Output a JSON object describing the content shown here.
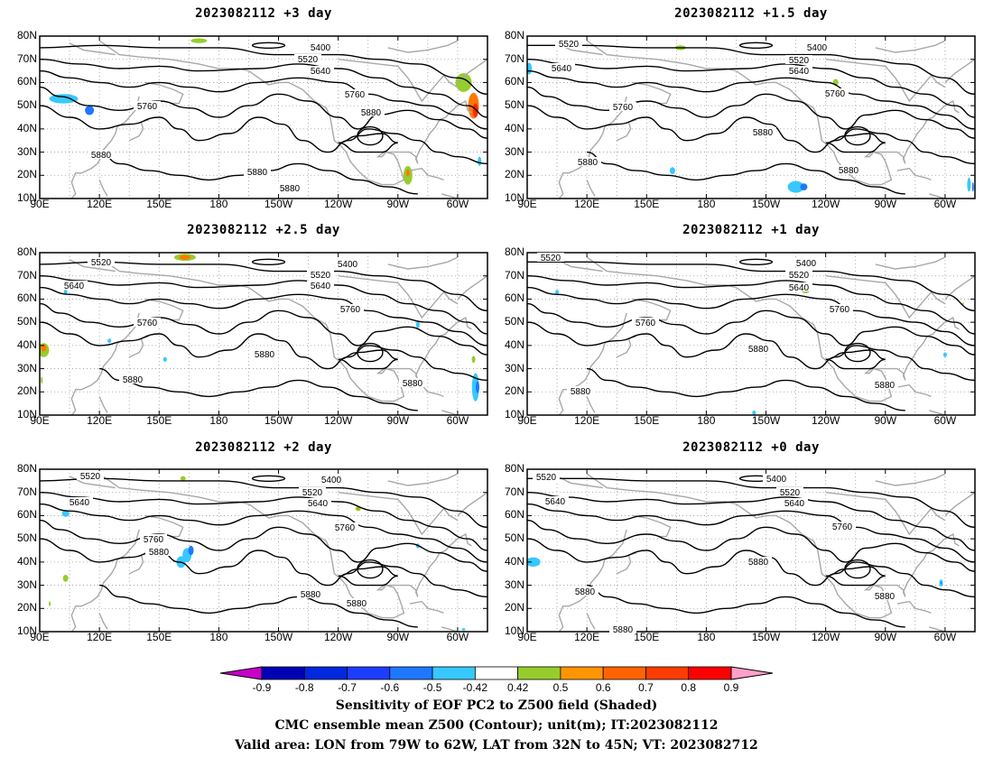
{
  "panels": [
    {
      "title": "2023082112 +3 day",
      "labels": {
        "5400": [
          [
            355,
            52
          ]
        ],
        "5520": [
          [
            341,
            65
          ]
        ],
        "5640": [
          [
            355,
            78
          ]
        ],
        "5760": [
          [
            163,
            117
          ],
          [
            393,
            104
          ]
        ],
        "5880": [
          [
            112,
            171
          ],
          [
            285,
            190
          ],
          [
            321,
            208
          ],
          [
            411,
            124
          ]
        ]
      },
      "patches": [
        {
          "lon": 102,
          "lat": 53,
          "rx": 16,
          "ry": 4,
          "color": "#37c8ff"
        },
        {
          "lon": 115,
          "lat": 48,
          "rx": 5,
          "ry": 4,
          "color": "#1e78ff"
        },
        {
          "lon": 147,
          "lat": 50,
          "rx": 5,
          "ry": 4,
          "color": "#96cd2d"
        },
        {
          "lon": 170,
          "lat": 78,
          "rx": 9,
          "ry": 2,
          "color": "#96cd2d"
        },
        {
          "lon": -85,
          "lat": 20,
          "rx": 5,
          "ry": 8,
          "color": "#96cd2d"
        },
        {
          "lon": -85,
          "lat": 21,
          "rx": 2,
          "ry": 3,
          "color": "#ff7800"
        },
        {
          "lon": -57,
          "lat": 60,
          "rx": 9,
          "ry": 8,
          "color": "#96cd2d"
        },
        {
          "lon": -52,
          "lat": 50,
          "rx": 6,
          "ry": 11,
          "color": "#ff7800"
        },
        {
          "lon": -51,
          "lat": 48,
          "rx": 3,
          "ry": 6,
          "color": "#ff2800"
        },
        {
          "lon": -49,
          "lat": 26,
          "rx": 2,
          "ry": 4,
          "color": "#37c8ff"
        },
        {
          "lon": 118,
          "lat": 28,
          "rx": 3,
          "ry": 2,
          "color": "#37c8ff"
        }
      ]
    },
    {
      "title": "2023082112 +1.5 day",
      "labels": {
        "5400": [
          [
            905,
            52
          ]
        ],
        "5520": [
          [
            630,
            48
          ],
          [
            885,
            66
          ]
        ],
        "5640": [
          [
            622,
            75
          ],
          [
            885,
            78
          ]
        ],
        "5760": [
          [
            690,
            118
          ],
          [
            925,
            103
          ]
        ],
        "5880": [
          [
            651,
            179
          ],
          [
            845,
            146
          ],
          [
            940,
            188
          ]
        ]
      },
      "patches": [
        {
          "lon": 91,
          "lat": 66,
          "rx": 3,
          "ry": 5,
          "color": "#37c8ff"
        },
        {
          "lon": 167,
          "lat": 75,
          "rx": 6,
          "ry": 2,
          "color": "#96cd2d"
        },
        {
          "lon": -115,
          "lat": 60,
          "rx": 3,
          "ry": 3,
          "color": "#96cd2d"
        },
        {
          "lon": -135,
          "lat": 15,
          "rx": 9,
          "ry": 5,
          "color": "#37c8ff"
        },
        {
          "lon": -131,
          "lat": 15,
          "rx": 4,
          "ry": 3,
          "color": "#1e78ff"
        },
        {
          "lon": -48,
          "lat": 16,
          "rx": 2,
          "ry": 6,
          "color": "#37c8ff"
        },
        {
          "lon": -46,
          "lat": 15,
          "rx": 1,
          "ry": 4,
          "color": "#1e78ff"
        },
        {
          "lon": 163,
          "lat": 22,
          "rx": 3,
          "ry": 3,
          "color": "#37c8ff"
        }
      ]
    },
    {
      "title": "2023082112 +2.5 day",
      "labels": {
        "5400": [
          [
            385,
            292
          ]
        ],
        "5520": [
          [
            112,
            290
          ],
          [
            355,
            304
          ]
        ],
        "5640": [
          [
            82,
            316
          ],
          [
            355,
            316
          ]
        ],
        "5760": [
          [
            163,
            357
          ],
          [
            388,
            342
          ]
        ],
        "5880": [
          [
            147,
            420
          ],
          [
            293,
            392
          ],
          [
            457,
            424
          ]
        ]
      },
      "patches": [
        {
          "lon": 92,
          "lat": 38,
          "rx": 6,
          "ry": 6,
          "color": "#96cd2d"
        },
        {
          "lon": 92,
          "lat": 39,
          "rx": 3,
          "ry": 3,
          "color": "#ff7800"
        },
        {
          "lon": 103,
          "lat": 63,
          "rx": 2,
          "ry": 2,
          "color": "#37c8ff"
        },
        {
          "lon": 153,
          "lat": 34,
          "rx": 2,
          "ry": 2,
          "color": "#37c8ff"
        },
        {
          "lon": 125,
          "lat": 42,
          "rx": 2,
          "ry": 2,
          "color": "#37c8ff"
        },
        {
          "lon": 163,
          "lat": 78,
          "rx": 12,
          "ry": 3,
          "color": "#96cd2d"
        },
        {
          "lon": 163,
          "lat": 78,
          "rx": 6,
          "ry": 2,
          "color": "#ff7800"
        },
        {
          "lon": -80,
          "lat": 49,
          "rx": 2,
          "ry": 3,
          "color": "#37c8ff"
        },
        {
          "lon": -51,
          "lat": 22,
          "rx": 4,
          "ry": 12,
          "color": "#37c8ff"
        },
        {
          "lon": -50,
          "lat": 22,
          "rx": 2,
          "ry": 5,
          "color": "#1e78ff"
        },
        {
          "lon": -52,
          "lat": 34,
          "rx": 2,
          "ry": 3,
          "color": "#96cd2d"
        },
        {
          "lon": 91,
          "lat": 25,
          "rx": 1,
          "ry": 3,
          "color": "#96cd2d"
        }
      ]
    },
    {
      "title": "2023082112 +1 day",
      "labels": {
        "5400": [
          [
            893,
            291
          ]
        ],
        "5520": [
          [
            610,
            285
          ],
          [
            885,
            304
          ]
        ],
        "5640": [
          [
            885,
            318
          ]
        ],
        "5760": [
          [
            715,
            357
          ],
          [
            930,
            342
          ]
        ],
        "5880": [
          [
            643,
            433
          ],
          [
            840,
            386
          ],
          [
            980,
            426
          ]
        ]
      },
      "patches": [
        {
          "lon": 105,
          "lat": 63,
          "rx": 2,
          "ry": 2,
          "color": "#37c8ff"
        },
        {
          "lon": -130,
          "lat": 64,
          "rx": 5,
          "ry": 3,
          "color": "#96cd2d"
        },
        {
          "lon": -60,
          "lat": 36,
          "rx": 2,
          "ry": 2,
          "color": "#37c8ff"
        },
        {
          "lon": -51,
          "lat": 58,
          "rx": 1,
          "ry": 1,
          "color": "#96cd2d"
        },
        {
          "lon": -156,
          "lat": 11,
          "rx": 2,
          "ry": 2,
          "color": "#37c8ff"
        }
      ]
    },
    {
      "title": "2023082112 +2 day",
      "labels": {
        "5400": [
          [
            367,
            531
          ]
        ],
        "5520": [
          [
            100,
            527
          ],
          [
            346,
            545
          ]
        ],
        "5640": [
          [
            88,
            556
          ],
          [
            352,
            557
          ]
        ],
        "5760": [
          [
            170,
            597
          ],
          [
            382,
            584
          ]
        ],
        "5880": [
          [
            176,
            611
          ],
          [
            344,
            658
          ],
          [
            395,
            668
          ]
        ]
      },
      "patches": [
        {
          "lon": 103,
          "lat": 61,
          "rx": 4,
          "ry": 3,
          "color": "#37c8ff"
        },
        {
          "lon": 164,
          "lat": 43,
          "rx": 5,
          "ry": 6,
          "color": "#37c8ff"
        },
        {
          "lon": 161,
          "lat": 40,
          "rx": 5,
          "ry": 5,
          "color": "#37c8ff"
        },
        {
          "lon": 166,
          "lat": 45,
          "rx": 3,
          "ry": 4,
          "color": "#1e78ff"
        },
        {
          "lon": 162,
          "lat": 76,
          "rx": 3,
          "ry": 2,
          "color": "#96cd2d"
        },
        {
          "lon": -110,
          "lat": 63,
          "rx": 3,
          "ry": 2,
          "color": "#96cd2d"
        },
        {
          "lon": -110,
          "lat": 63,
          "rx": 1,
          "ry": 1,
          "color": "#ff7800"
        },
        {
          "lon": -80,
          "lat": 47,
          "rx": 2,
          "ry": 2,
          "color": "#37c8ff"
        },
        {
          "lon": 103,
          "lat": 33,
          "rx": 3,
          "ry": 3,
          "color": "#96cd2d"
        },
        {
          "lon": 95,
          "lat": 22,
          "rx": 1,
          "ry": 2,
          "color": "#96cd2d"
        },
        {
          "lon": -57,
          "lat": 11,
          "rx": 2,
          "ry": 1,
          "color": "#37c8ff"
        }
      ]
    },
    {
      "title": "2023082112 +0 day",
      "labels": {
        "5400": [
          [
            860,
            530
          ]
        ],
        "5520": [
          [
            605,
            528
          ],
          [
            875,
            545
          ]
        ],
        "5640": [
          [
            615,
            555
          ],
          [
            880,
            557
          ]
        ],
        "5760": [
          [
            933,
            583
          ]
        ],
        "5880": [
          [
            648,
            655
          ],
          [
            690,
            697
          ],
          [
            840,
            622
          ],
          [
            980,
            660
          ]
        ]
      },
      "patches": [
        {
          "lon": 93,
          "lat": 40,
          "rx": 8,
          "ry": 4,
          "color": "#37c8ff"
        },
        {
          "lon": -62,
          "lat": 31,
          "rx": 2,
          "ry": 3,
          "color": "#37c8ff"
        },
        {
          "lon": -62,
          "lat": 31,
          "rx": 1,
          "ry": 1,
          "color": "#1e78ff"
        },
        {
          "lon": -63,
          "lat": 46,
          "rx": 1,
          "ry": 1,
          "color": "#37c8ff"
        }
      ]
    }
  ],
  "axes": {
    "lat_labels": [
      "80N",
      "70N",
      "60N",
      "50N",
      "40N",
      "30N",
      "20N",
      "10N"
    ],
    "lon_labels": [
      "90E",
      "120E",
      "150E",
      "180",
      "150W",
      "120W",
      "90W",
      "60W"
    ]
  },
  "contour_levels": [
    5400,
    5520,
    5640,
    5760,
    5880
  ],
  "colorbar": {
    "labels": [
      "-0.9",
      "-0.8",
      "-0.7",
      "-0.6",
      "-0.5",
      "-0.42",
      "0.42",
      "0.5",
      "0.6",
      "0.7",
      "0.8",
      "0.9"
    ],
    "colors": [
      "#0000b4",
      "#0028dc",
      "#1e3cff",
      "#1e78ff",
      "#37c8ff",
      "#ffffff",
      "#96cd2d",
      "#ff9600",
      "#ff6400",
      "#ff3c00",
      "#ff0000"
    ],
    "low_extend_color": "#c800c8",
    "high_extend_color": "#ffa0c8"
  },
  "footer": {
    "line1": "Sensitivity of EOF PC2 to Z500 field (Shaded)",
    "line2": "CMC ensemble mean Z500 (Contour); unit(m); IT:2023082112",
    "line3": "Valid area: LON from 79W to 62W, LAT from 32N to 45N; VT: 2023082712"
  }
}
